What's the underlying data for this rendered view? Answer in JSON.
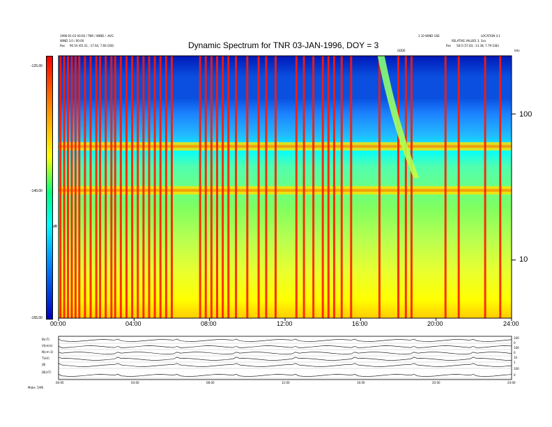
{
  "header": {
    "title": "Dynamic Spectrum for TNR 03-JAN-1996, DOY = 3",
    "left_line1": "1996-01-03 00:00 / TNR / WIND / -AVG",
    "left_line2": "WIND 3.0 / 00:00",
    "left_res_label": "Res",
    "left_res_value": "90.54 (65.41, -17.64, 7.66 GSE)",
    "right_line1": "1.10 WIND GSE",
    "right_line2": "LOCATION 4.1",
    "right_line3": "RELATIVE VALUES 3, 3xx",
    "right_res_label": "Res",
    "right_res_value": "58.0 (57.83, -13.38, 7.79 GSE)",
    "center_small": "GDDE",
    "khz_label": "kHz"
  },
  "colorbar": {
    "ticks": [
      "-125.00",
      "-140.00",
      "-155.00"
    ],
    "unit": "dB"
  },
  "chart_data": {
    "type": "heatmap",
    "title": "Dynamic Spectrum for TNR 03-JAN-1996, DOY = 3",
    "x_ticks": [
      "00:00",
      "04:00",
      "08:00",
      "12:00",
      "16:00",
      "20:00",
      "24:00"
    ],
    "x_range_hours": [
      0,
      24
    ],
    "y_scale": "log",
    "y_ticks": [
      "100",
      "10"
    ],
    "y_tick_values_khz": [
      100,
      10
    ],
    "y_range_khz": [
      4,
      250
    ],
    "color_range_db": [
      -155,
      -125
    ],
    "bands": [
      {
        "name": "upper plasma line",
        "khz": 60
      },
      {
        "name": "lower plasma line",
        "khz": 30
      }
    ],
    "burst_hours": [
      0.1,
      0.3,
      0.5,
      0.7,
      0.9,
      1.1,
      1.4,
      1.7,
      2.0,
      2.2,
      2.5,
      2.8,
      3.0,
      3.3,
      3.6,
      3.9,
      4.2,
      4.5,
      4.8,
      5.1,
      5.4,
      5.7,
      6.0,
      7.5,
      7.8,
      8.1,
      8.4,
      8.7,
      9.0,
      9.4,
      10.0,
      10.6,
      11.0,
      11.5,
      12.6,
      13.0,
      13.5,
      14.0,
      14.3,
      14.6,
      15.0,
      15.5,
      17.0,
      18.0,
      18.4,
      18.7,
      20.5,
      21.2,
      22.6,
      23.4
    ],
    "type_iii_burst": {
      "start_hour": 16.9,
      "end_hour": 18.8
    }
  },
  "panels": {
    "labels": [
      "B(nT)",
      "V(km/s)",
      "N(cm-3)",
      "T(eV)",
      "|B|",
      "|B|(nT)"
    ],
    "right_values": [
      "100",
      "0",
      "100",
      "0",
      "10",
      "1",
      "100",
      "0"
    ],
    "x_ticks": [
      "00:00",
      "04:00",
      "08:00",
      "12:00",
      "16:00",
      "20:00",
      "24:00"
    ],
    "footer": "Make.   5/96"
  }
}
